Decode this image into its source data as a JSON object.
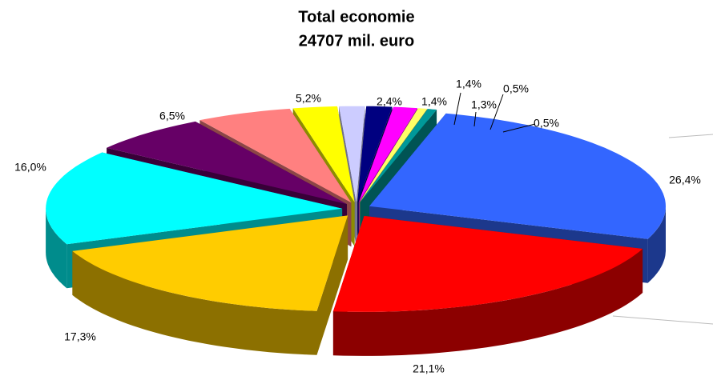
{
  "chart_data": {
    "type": "pie3d",
    "title": "Total economie",
    "subtitle": "24707 mil. euro",
    "values": [
      26.4,
      21.1,
      17.3,
      16.0,
      6.5,
      5.2,
      2.4,
      1.4,
      1.4,
      1.3,
      0.5,
      0.5
    ],
    "value_labels": [
      "26,4%",
      "21,1%",
      "17,3%",
      "16,0%",
      "6,5%",
      "5,2%",
      "2,4%",
      "1,4%",
      "1,4%",
      "1,3%",
      "0,5%",
      "0,5%"
    ],
    "colors": [
      "#3366ff",
      "#ff0000",
      "#ffcc00",
      "#00ffff",
      "#660066",
      "#ff8080",
      "#ffff00",
      "#ccccff",
      "#000080",
      "#ff00ff",
      "#ffff66",
      "#009999"
    ]
  }
}
